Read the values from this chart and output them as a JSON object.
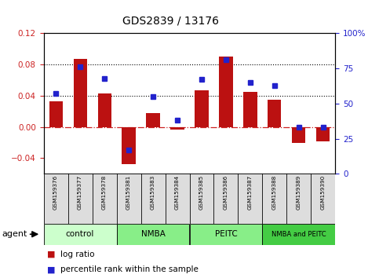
{
  "title": "GDS2839 / 13176",
  "samples": [
    "GSM159376",
    "GSM159377",
    "GSM159378",
    "GSM159381",
    "GSM159383",
    "GSM159384",
    "GSM159385",
    "GSM159386",
    "GSM159387",
    "GSM159388",
    "GSM159389",
    "GSM159390"
  ],
  "log_ratio": [
    0.033,
    0.087,
    0.043,
    -0.048,
    0.018,
    -0.003,
    0.047,
    0.09,
    0.045,
    0.035,
    -0.02,
    -0.018
  ],
  "percentile_rank": [
    57,
    76,
    68,
    17,
    55,
    38,
    67,
    81,
    65,
    63,
    33,
    33
  ],
  "groups": [
    {
      "label": "control",
      "start": 0,
      "end": 3,
      "color": "#ccffcc"
    },
    {
      "label": "NMBA",
      "start": 3,
      "end": 6,
      "color": "#88ee88"
    },
    {
      "label": "PEITC",
      "start": 6,
      "end": 9,
      "color": "#88ee88"
    },
    {
      "label": "NMBA and PEITC",
      "start": 9,
      "end": 12,
      "color": "#44cc44"
    }
  ],
  "bar_color": "#bb1111",
  "dot_color": "#2222cc",
  "ylim_left": [
    -0.06,
    0.12
  ],
  "ylim_right": [
    0,
    100
  ],
  "yticks_left": [
    -0.04,
    0.0,
    0.04,
    0.08,
    0.12
  ],
  "yticks_right": [
    0,
    25,
    50,
    75,
    100
  ],
  "hlines": [
    0.04,
    0.08
  ],
  "background_color": "#ffffff",
  "plot_bg": "#ffffff",
  "left_axis_color": "#cc2222",
  "right_axis_color": "#2222cc"
}
